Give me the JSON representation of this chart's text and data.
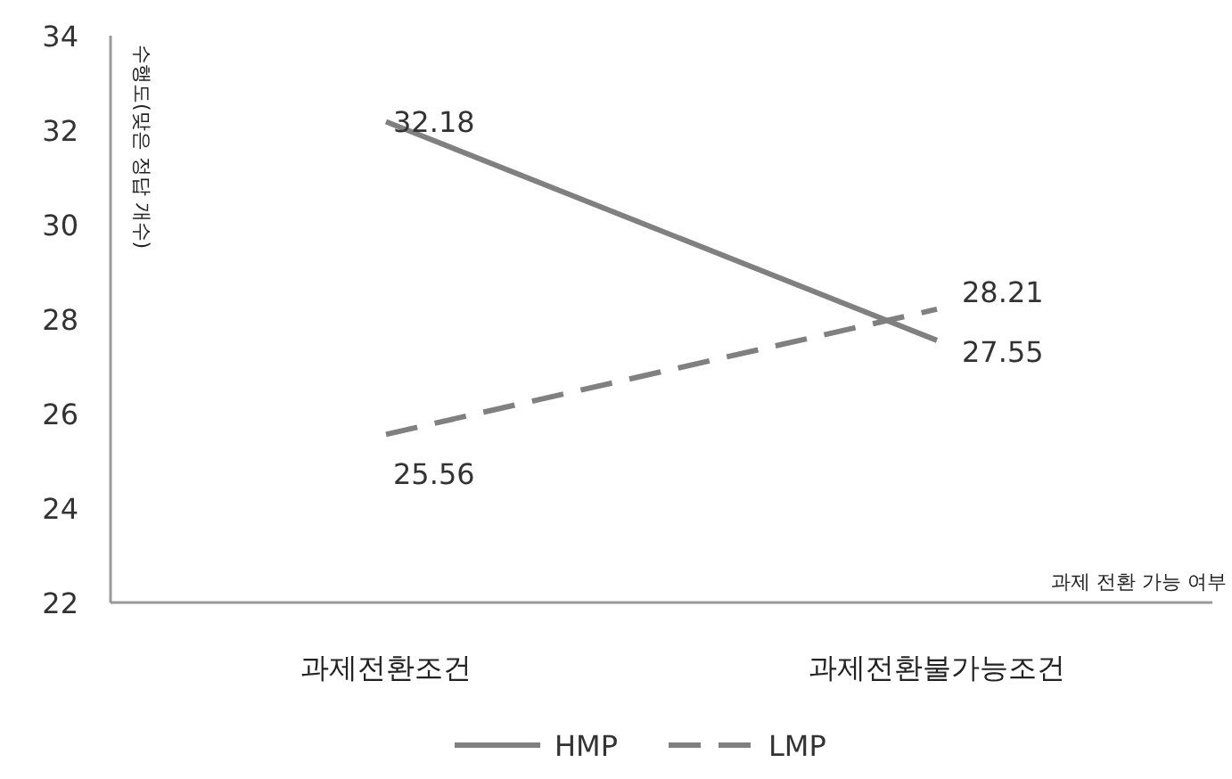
{
  "chart_data": {
    "type": "line",
    "categories": [
      "과제전환조건",
      "과제전환불가능조건"
    ],
    "xlabel": "과제 전환 가능 여부",
    "ylabel": "수행도(맞은 정답 개수)",
    "ylim": [
      22,
      34
    ],
    "yticks": [
      22,
      24,
      26,
      28,
      30,
      32,
      34
    ],
    "grid": false,
    "legend": "bottom",
    "data_labels": true,
    "marker": "none",
    "series": [
      {
        "name": "HMP",
        "color": "#808080",
        "values": [
          32.18,
          27.55
        ],
        "line_style": "solid"
      },
      {
        "name": "LMP",
        "color": "#808080",
        "values": [
          25.56,
          28.21
        ],
        "line_style": "dashed"
      }
    ]
  }
}
